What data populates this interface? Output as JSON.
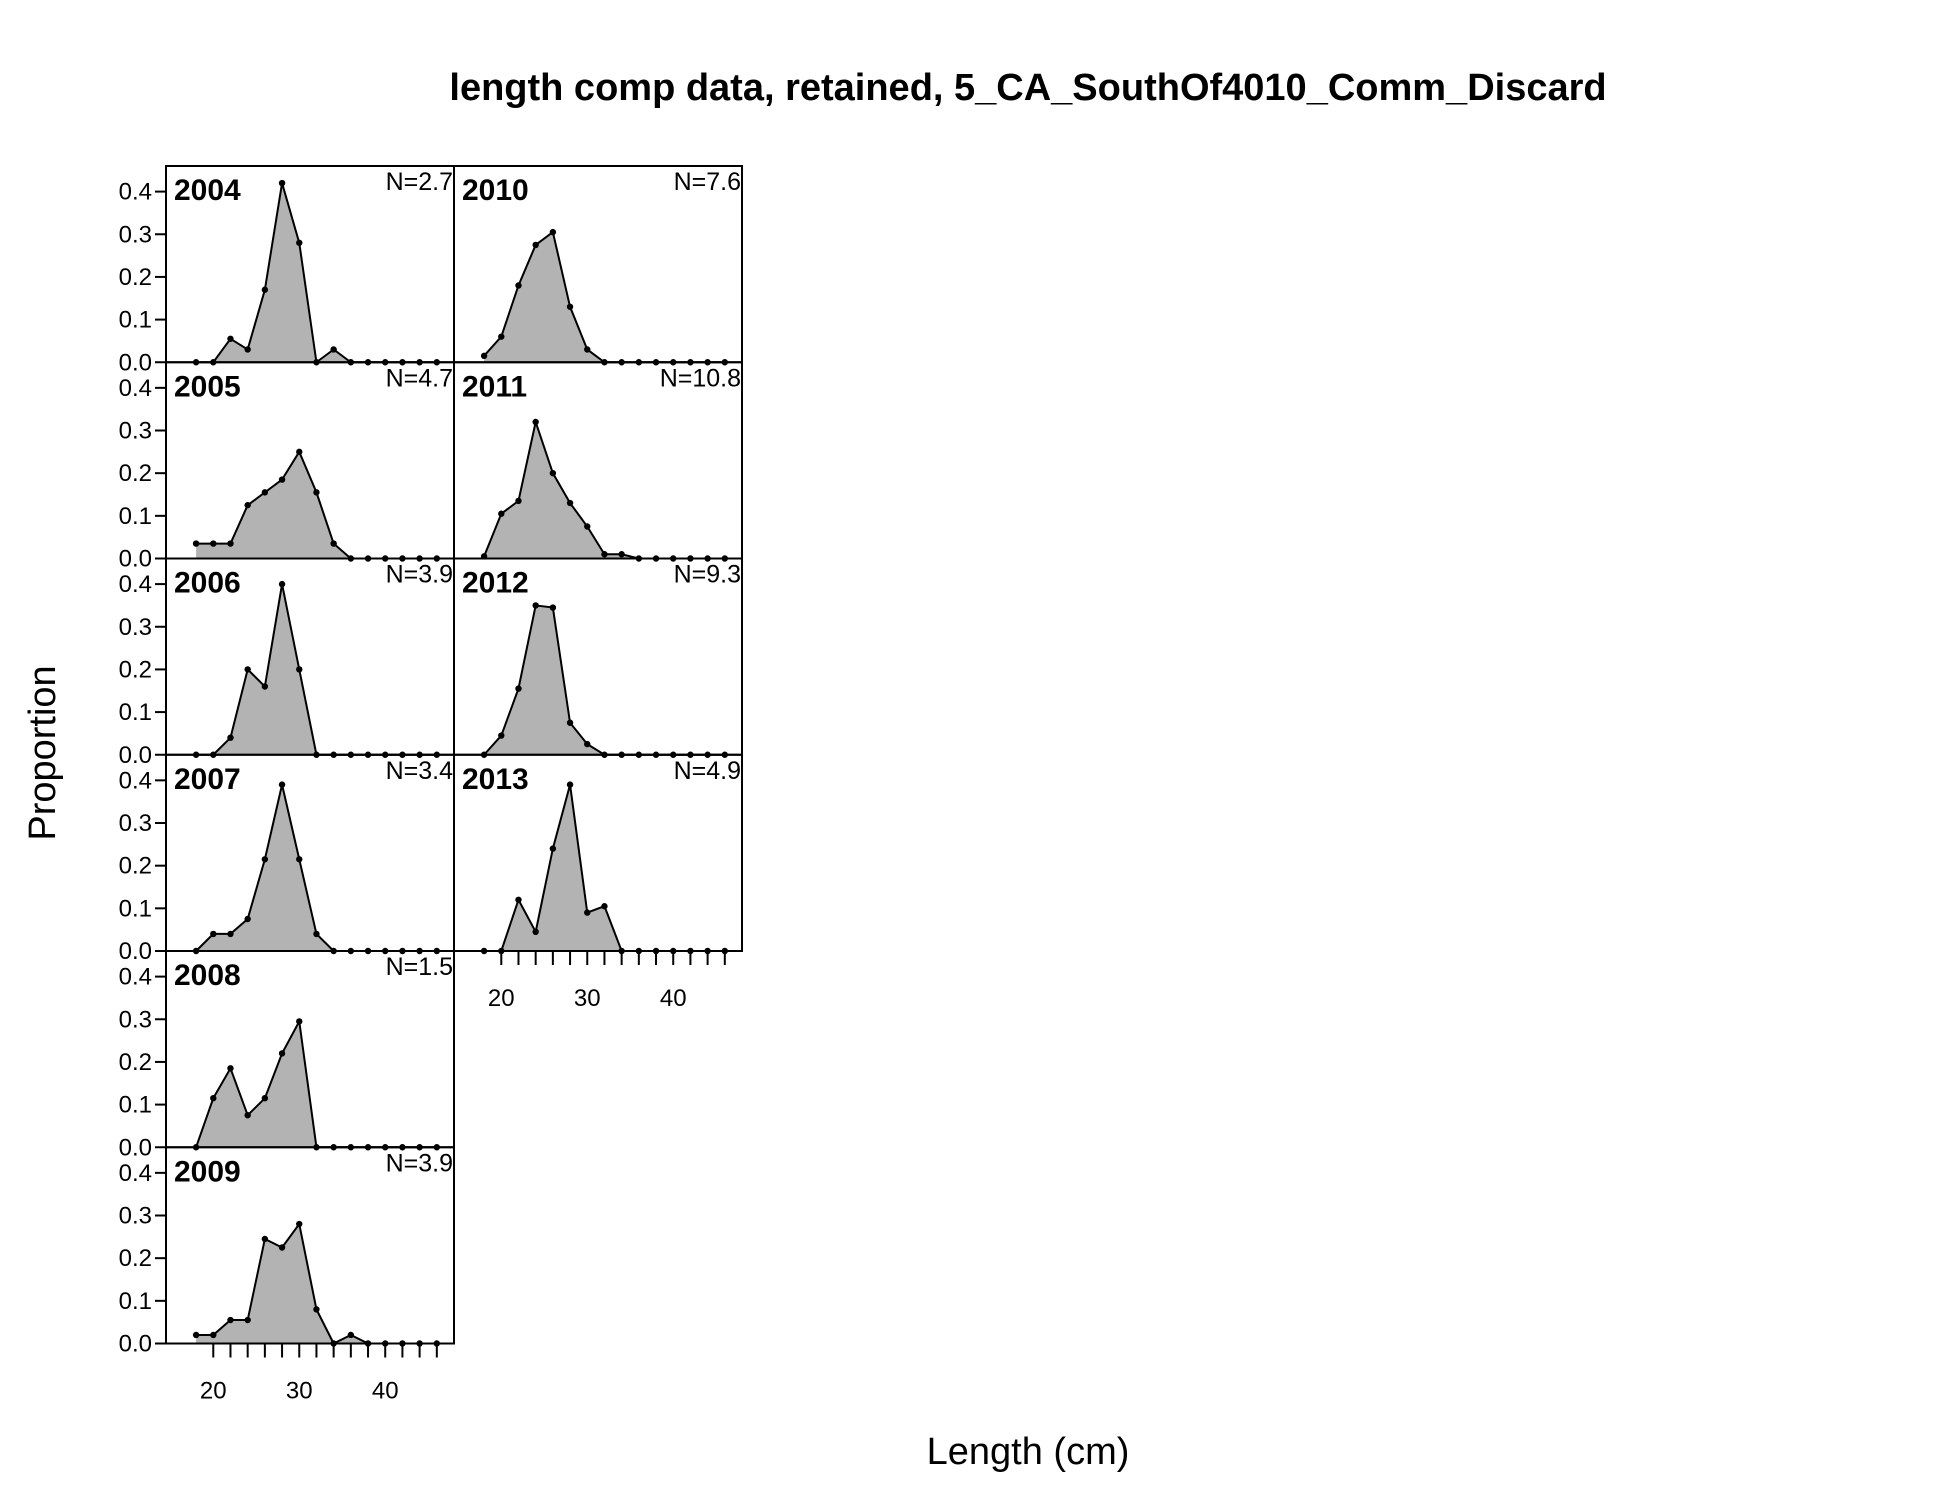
{
  "chart_data": {
    "type": "area",
    "title": "length comp data, retained, 5_CA_SouthOf4010_Comm_Discard",
    "xlabel": "Length (cm)",
    "ylabel": "Proportion",
    "x_ticks": [
      "20",
      "30",
      "40"
    ],
    "y_ticks": [
      "0.0",
      "0.1",
      "0.2",
      "0.3",
      "0.4"
    ],
    "xlim": [
      14.5,
      48
    ],
    "ylim": [
      0,
      0.46
    ],
    "x": [
      18,
      20,
      22,
      24,
      26,
      28,
      30,
      32,
      34,
      36,
      38,
      40,
      42,
      44,
      46
    ],
    "fill_color": "#b3b3b3",
    "line_color": "#000000",
    "panels": [
      {
        "year": "2004",
        "n_label": "N=2.7",
        "values": [
          0,
          0,
          0.055,
          0.03,
          0.17,
          0.42,
          0.28,
          0,
          0.03,
          0,
          0,
          0,
          0,
          0,
          0
        ]
      },
      {
        "year": "2005",
        "n_label": "N=4.7",
        "values": [
          0.035,
          0.035,
          0.035,
          0.125,
          0.155,
          0.185,
          0.25,
          0.155,
          0.035,
          0,
          0,
          0,
          0,
          0,
          0
        ]
      },
      {
        "year": "2006",
        "n_label": "N=3.9",
        "values": [
          0,
          0,
          0.04,
          0.2,
          0.16,
          0.4,
          0.2,
          0,
          0,
          0,
          0,
          0,
          0,
          0,
          0
        ]
      },
      {
        "year": "2007",
        "n_label": "N=3.4",
        "values": [
          0,
          0.04,
          0.04,
          0.075,
          0.215,
          0.39,
          0.215,
          0.04,
          0,
          0,
          0,
          0,
          0,
          0,
          0
        ]
      },
      {
        "year": "2008",
        "n_label": "N=1.5",
        "values": [
          0,
          0.115,
          0.185,
          0.075,
          0.115,
          0.22,
          0.295,
          0,
          0,
          0,
          0,
          0,
          0,
          0,
          0
        ]
      },
      {
        "year": "2009",
        "n_label": "N=3.9",
        "values": [
          0.02,
          0.02,
          0.055,
          0.055,
          0.245,
          0.225,
          0.28,
          0.08,
          0,
          0.02,
          0,
          0,
          0,
          0,
          0
        ]
      },
      {
        "year": "2010",
        "n_label": "N=7.6",
        "values": [
          0.015,
          0.06,
          0.18,
          0.275,
          0.305,
          0.13,
          0.03,
          0,
          0,
          0,
          0,
          0,
          0,
          0,
          0
        ]
      },
      {
        "year": "2011",
        "n_label": "N=10.8",
        "values": [
          0.005,
          0.105,
          0.135,
          0.32,
          0.2,
          0.13,
          0.075,
          0.01,
          0.01,
          0,
          0,
          0,
          0,
          0,
          0
        ]
      },
      {
        "year": "2012",
        "n_label": "N=9.3",
        "values": [
          0,
          0.045,
          0.155,
          0.35,
          0.345,
          0.075,
          0.025,
          0,
          0,
          0,
          0,
          0,
          0,
          0,
          0
        ]
      },
      {
        "year": "2013",
        "n_label": "N=4.9",
        "values": [
          0,
          0,
          0.12,
          0.045,
          0.24,
          0.39,
          0.09,
          0.105,
          0,
          0,
          0,
          0,
          0,
          0,
          0
        ]
      }
    ]
  }
}
